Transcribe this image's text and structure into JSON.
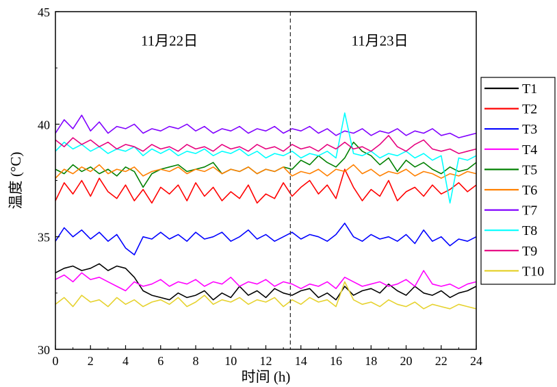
{
  "chart_data": {
    "type": "line",
    "xlabel": "时间 (h)",
    "ylabel": "温度 (°C)",
    "xlim": [
      0,
      24
    ],
    "ylim": [
      30,
      45
    ],
    "xticks": [
      0,
      2,
      4,
      6,
      8,
      10,
      12,
      14,
      16,
      18,
      20,
      22,
      24
    ],
    "yticks": [
      30,
      35,
      40,
      45
    ],
    "grid": false,
    "legend_position": "right",
    "day_divider_x": 13.4,
    "annotations": [
      {
        "text": "11月22日",
        "x": 6.5,
        "y": 43.7
      },
      {
        "text": "11月23日",
        "x": 18.5,
        "y": 43.7
      }
    ],
    "x": [
      0,
      0.5,
      1,
      1.5,
      2,
      2.5,
      3,
      3.5,
      4,
      4.5,
      5,
      5.5,
      6,
      6.5,
      7,
      7.5,
      8,
      8.5,
      9,
      9.5,
      10,
      10.5,
      11,
      11.5,
      12,
      12.5,
      13,
      13.5,
      14,
      14.5,
      15,
      15.5,
      16,
      16.5,
      17,
      17.5,
      18,
      18.5,
      19,
      19.5,
      20,
      20.5,
      21,
      21.5,
      22,
      22.5,
      23,
      23.5,
      24
    ],
    "series": [
      {
        "name": "T1",
        "color": "#000000",
        "values": [
          33.4,
          33.6,
          33.7,
          33.5,
          33.6,
          33.8,
          33.5,
          33.7,
          33.6,
          33.2,
          32.6,
          32.4,
          32.3,
          32.2,
          32.5,
          32.3,
          32.4,
          32.6,
          32.2,
          32.5,
          32.3,
          32.8,
          32.4,
          32.6,
          32.3,
          32.7,
          32.5,
          32.4,
          32.6,
          32.7,
          32.3,
          32.5,
          32.2,
          32.8,
          32.4,
          32.6,
          32.7,
          32.5,
          32.9,
          32.6,
          32.4,
          32.8,
          32.5,
          32.4,
          32.6,
          32.3,
          32.5,
          32.6,
          32.8
        ]
      },
      {
        "name": "T2",
        "color": "#ff0000",
        "values": [
          36.6,
          37.4,
          36.9,
          37.5,
          36.8,
          37.6,
          37.0,
          36.7,
          37.3,
          36.6,
          37.1,
          36.5,
          37.2,
          36.9,
          37.3,
          36.6,
          37.4,
          36.8,
          37.2,
          36.6,
          37.0,
          36.7,
          37.3,
          36.5,
          36.9,
          36.7,
          37.4,
          36.8,
          37.2,
          37.5,
          36.9,
          37.3,
          36.7,
          38.0,
          37.2,
          36.6,
          37.1,
          36.8,
          37.5,
          36.6,
          37.0,
          37.2,
          36.8,
          37.3,
          36.9,
          37.1,
          37.4,
          37.0,
          37.3
        ]
      },
      {
        "name": "T3",
        "color": "#0000ff",
        "values": [
          34.8,
          35.4,
          35.0,
          35.3,
          34.9,
          35.2,
          34.8,
          35.1,
          34.5,
          34.2,
          35.0,
          34.9,
          35.2,
          34.9,
          35.1,
          34.8,
          35.2,
          34.9,
          35.0,
          35.2,
          34.8,
          35.0,
          35.3,
          34.9,
          35.1,
          34.8,
          35.0,
          35.2,
          34.9,
          35.1,
          35.0,
          34.8,
          35.1,
          35.6,
          35.0,
          34.8,
          35.1,
          34.9,
          35.0,
          34.8,
          35.1,
          34.7,
          35.3,
          34.8,
          35.0,
          34.6,
          34.9,
          34.8,
          35.0
        ]
      },
      {
        "name": "T4",
        "color": "#ff00ff",
        "values": [
          33.1,
          33.3,
          33.0,
          33.4,
          33.1,
          33.2,
          33.0,
          32.8,
          32.6,
          33.0,
          32.8,
          32.9,
          33.1,
          32.8,
          33.0,
          32.9,
          33.1,
          32.8,
          33.0,
          32.9,
          33.2,
          32.8,
          33.0,
          32.9,
          33.1,
          32.8,
          33.0,
          32.9,
          32.7,
          32.9,
          32.8,
          33.0,
          32.7,
          33.2,
          33.0,
          32.8,
          32.9,
          33.0,
          32.8,
          32.9,
          33.1,
          32.8,
          33.5,
          32.9,
          32.8,
          32.9,
          32.7,
          32.9,
          33.0
        ]
      },
      {
        "name": "T5",
        "color": "#008000",
        "values": [
          38.0,
          37.8,
          38.2,
          37.9,
          38.1,
          37.8,
          38.0,
          37.7,
          38.1,
          37.9,
          37.2,
          37.8,
          38.0,
          38.1,
          38.2,
          37.9,
          38.0,
          38.1,
          38.3,
          37.8,
          38.0,
          37.9,
          38.1,
          37.8,
          38.0,
          37.9,
          38.1,
          38.0,
          38.4,
          38.2,
          38.6,
          38.3,
          38.1,
          38.5,
          39.2,
          38.8,
          38.6,
          38.2,
          38.5,
          37.9,
          38.4,
          38.1,
          38.3,
          38.0,
          37.8,
          38.1,
          37.9,
          38.0,
          38.3
        ]
      },
      {
        "name": "T6",
        "color": "#ff8000",
        "values": [
          37.6,
          38.0,
          37.8,
          38.1,
          37.9,
          38.2,
          37.8,
          38.0,
          37.9,
          38.1,
          37.7,
          37.9,
          38.0,
          37.9,
          38.1,
          37.8,
          38.0,
          37.9,
          38.1,
          37.8,
          38.0,
          37.9,
          38.1,
          37.8,
          38.0,
          37.9,
          38.1,
          37.7,
          37.9,
          37.8,
          38.0,
          37.7,
          38.0,
          37.9,
          38.2,
          37.8,
          38.0,
          37.7,
          37.9,
          37.8,
          38.0,
          37.7,
          37.9,
          37.8,
          37.6,
          37.8,
          37.7,
          37.9,
          37.8
        ]
      },
      {
        "name": "T7",
        "color": "#8000ff",
        "values": [
          39.6,
          40.2,
          39.8,
          40.4,
          39.7,
          40.1,
          39.6,
          39.9,
          39.8,
          40.0,
          39.6,
          39.8,
          39.7,
          39.9,
          39.8,
          40.0,
          39.7,
          39.9,
          39.6,
          39.8,
          39.7,
          39.9,
          39.6,
          39.8,
          39.7,
          39.9,
          39.6,
          39.8,
          39.7,
          39.9,
          39.6,
          39.8,
          39.5,
          39.7,
          39.6,
          39.8,
          39.5,
          39.7,
          39.6,
          39.8,
          39.5,
          39.7,
          39.6,
          39.8,
          39.5,
          39.6,
          39.4,
          39.5,
          39.6
        ]
      },
      {
        "name": "T8",
        "color": "#00ffff",
        "values": [
          38.8,
          39.2,
          38.9,
          39.1,
          38.8,
          39.0,
          38.7,
          38.9,
          38.8,
          39.0,
          38.6,
          38.9,
          38.7,
          38.9,
          38.6,
          38.8,
          38.7,
          38.9,
          38.6,
          38.8,
          38.7,
          38.9,
          38.6,
          38.8,
          38.5,
          38.7,
          38.6,
          38.8,
          38.5,
          38.7,
          38.6,
          38.8,
          38.5,
          40.5,
          38.7,
          38.6,
          38.8,
          38.5,
          38.7,
          38.6,
          38.8,
          38.5,
          38.7,
          38.4,
          38.6,
          36.5,
          38.5,
          38.4,
          38.6
        ]
      },
      {
        "name": "T9",
        "color": "#e6007e",
        "values": [
          39.3,
          39.0,
          39.4,
          39.1,
          39.3,
          39.0,
          39.2,
          38.9,
          39.1,
          39.0,
          38.8,
          39.1,
          38.9,
          39.0,
          38.8,
          39.1,
          38.9,
          39.0,
          38.8,
          39.1,
          38.9,
          39.0,
          38.8,
          39.1,
          38.9,
          39.0,
          38.8,
          39.1,
          38.9,
          39.0,
          38.8,
          39.1,
          38.9,
          39.2,
          38.9,
          39.0,
          38.8,
          39.1,
          39.5,
          39.0,
          38.8,
          39.1,
          39.3,
          38.9,
          38.8,
          38.9,
          38.7,
          38.8,
          38.9
        ]
      },
      {
        "name": "T10",
        "color": "#e6d22e",
        "values": [
          32.0,
          32.3,
          31.9,
          32.4,
          32.1,
          32.2,
          31.9,
          32.3,
          32.0,
          32.2,
          31.9,
          32.1,
          32.2,
          32.0,
          32.3,
          31.9,
          32.1,
          32.4,
          32.0,
          32.2,
          32.1,
          32.3,
          32.0,
          32.2,
          32.1,
          32.3,
          31.9,
          32.2,
          32.0,
          32.3,
          32.1,
          32.2,
          31.9,
          33.0,
          32.2,
          32.0,
          32.1,
          31.9,
          32.2,
          32.0,
          31.9,
          32.1,
          31.8,
          32.0,
          31.9,
          31.8,
          32.0,
          31.9,
          31.8
        ]
      }
    ]
  }
}
